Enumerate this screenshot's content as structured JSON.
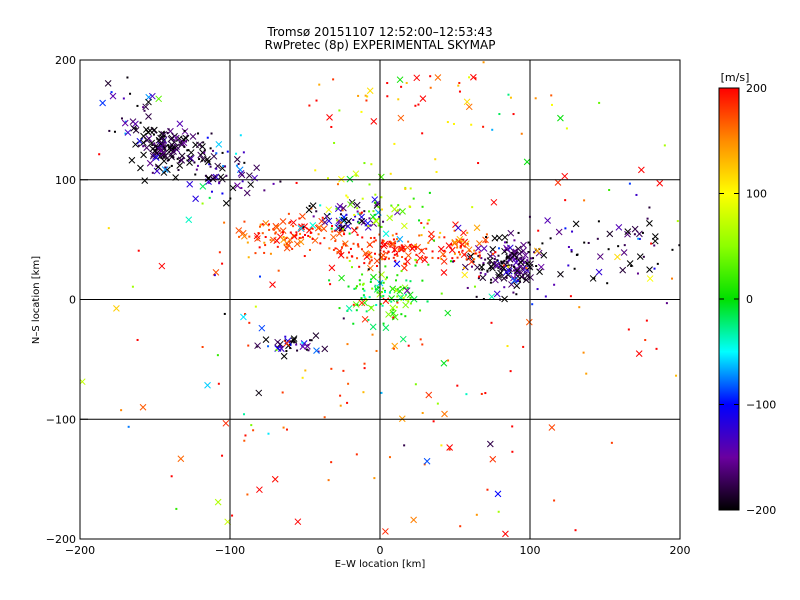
{
  "chart_data": {
    "type": "scatter",
    "title": "Tromsø 20151107 12:52:00–12:53:43",
    "subtitle": "RwPretec (8p) EXPERIMENTAL SKYMAP",
    "xlabel": "E–W location [km]",
    "ylabel": "N–S location [km]",
    "xlim": [
      -200,
      200
    ],
    "ylim": [
      -200,
      200
    ],
    "x_ticks": [
      -200,
      -100,
      0,
      100,
      200
    ],
    "y_ticks": [
      -200,
      -100,
      0,
      100,
      200
    ],
    "x_tick_labels": [
      "−200",
      "−100",
      "0",
      "100",
      "200"
    ],
    "y_tick_labels": [
      "−200",
      "−100",
      "0",
      "100",
      "200"
    ],
    "grid": true,
    "marker_types": [
      "x",
      "dot"
    ],
    "colorbar": {
      "label": "[m/s]",
      "range": [
        -200,
        200
      ],
      "ticks": [
        200,
        100,
        0,
        -100,
        -200
      ],
      "tick_labels": [
        "200",
        "100",
        "0",
        "−100",
        "−200"
      ],
      "palette_stops": [
        {
          "value": 200,
          "color": "#ff0000"
        },
        {
          "value": 150,
          "color": "#ff8c00"
        },
        {
          "value": 100,
          "color": "#ffff00"
        },
        {
          "value": 50,
          "color": "#8cff00"
        },
        {
          "value": 0,
          "color": "#00e000"
        },
        {
          "value": -50,
          "color": "#00ffff"
        },
        {
          "value": -100,
          "color": "#0000ff"
        },
        {
          "value": -150,
          "color": "#6a00a0"
        },
        {
          "value": -200,
          "color": "#000000"
        }
      ]
    },
    "clusters": [
      {
        "cx": -140,
        "cy": 125,
        "sx": 12,
        "sy": 10,
        "n": 140,
        "v": -190,
        "vs": 25,
        "xr": 0.6
      },
      {
        "cx": -105,
        "cy": 105,
        "sx": 15,
        "sy": 12,
        "n": 60,
        "v": -160,
        "vs": 60,
        "xr": 0.5
      },
      {
        "cx": -165,
        "cy": 155,
        "sx": 14,
        "sy": 15,
        "n": 30,
        "v": -170,
        "vs": 50,
        "xr": 0.5
      },
      {
        "cx": -60,
        "cy": 55,
        "sx": 18,
        "sy": 8,
        "n": 110,
        "v": 180,
        "vs": 25,
        "xr": 0.3
      },
      {
        "cx": -20,
        "cy": 70,
        "sx": 14,
        "sy": 8,
        "n": 60,
        "v": -150,
        "vs": 60,
        "xr": 0.6
      },
      {
        "cx": 5,
        "cy": 42,
        "sx": 22,
        "sy": 6,
        "n": 150,
        "v": 185,
        "vs": 20,
        "xr": 0.2
      },
      {
        "cx": 5,
        "cy": 5,
        "sx": 14,
        "sy": 12,
        "n": 110,
        "v": 10,
        "vs": 30,
        "xr": 0.3
      },
      {
        "cx": 0,
        "cy": 75,
        "sx": 16,
        "sy": 15,
        "n": 60,
        "v": 60,
        "vs": 40,
        "xr": 0.2
      },
      {
        "cx": 85,
        "cy": 28,
        "sx": 12,
        "sy": 10,
        "n": 170,
        "v": -180,
        "vs": 35,
        "xr": 0.5
      },
      {
        "cx": 55,
        "cy": 40,
        "sx": 12,
        "sy": 10,
        "n": 50,
        "v": 180,
        "vs": 40,
        "xr": 0.3
      },
      {
        "cx": 165,
        "cy": 45,
        "sx": 25,
        "sy": 15,
        "n": 60,
        "v": -190,
        "vs": 50,
        "xr": 0.3
      },
      {
        "cx": -55,
        "cy": -38,
        "sx": 12,
        "sy": 4,
        "n": 40,
        "v": -170,
        "vs": 40,
        "xr": 0.5
      },
      {
        "cx": 40,
        "cy": 170,
        "sx": 40,
        "sy": 25,
        "n": 50,
        "v": 180,
        "vs": 50,
        "xr": 0.2
      },
      {
        "cx": 0,
        "cy": -100,
        "sx": 80,
        "sy": 70,
        "n": 90,
        "v": 185,
        "vs": 30,
        "xr": 0.2
      },
      {
        "cx": 0,
        "cy": 20,
        "sx": 130,
        "sy": 110,
        "n": 170,
        "v": 100,
        "vs": 150,
        "xr": 0.3
      }
    ]
  }
}
